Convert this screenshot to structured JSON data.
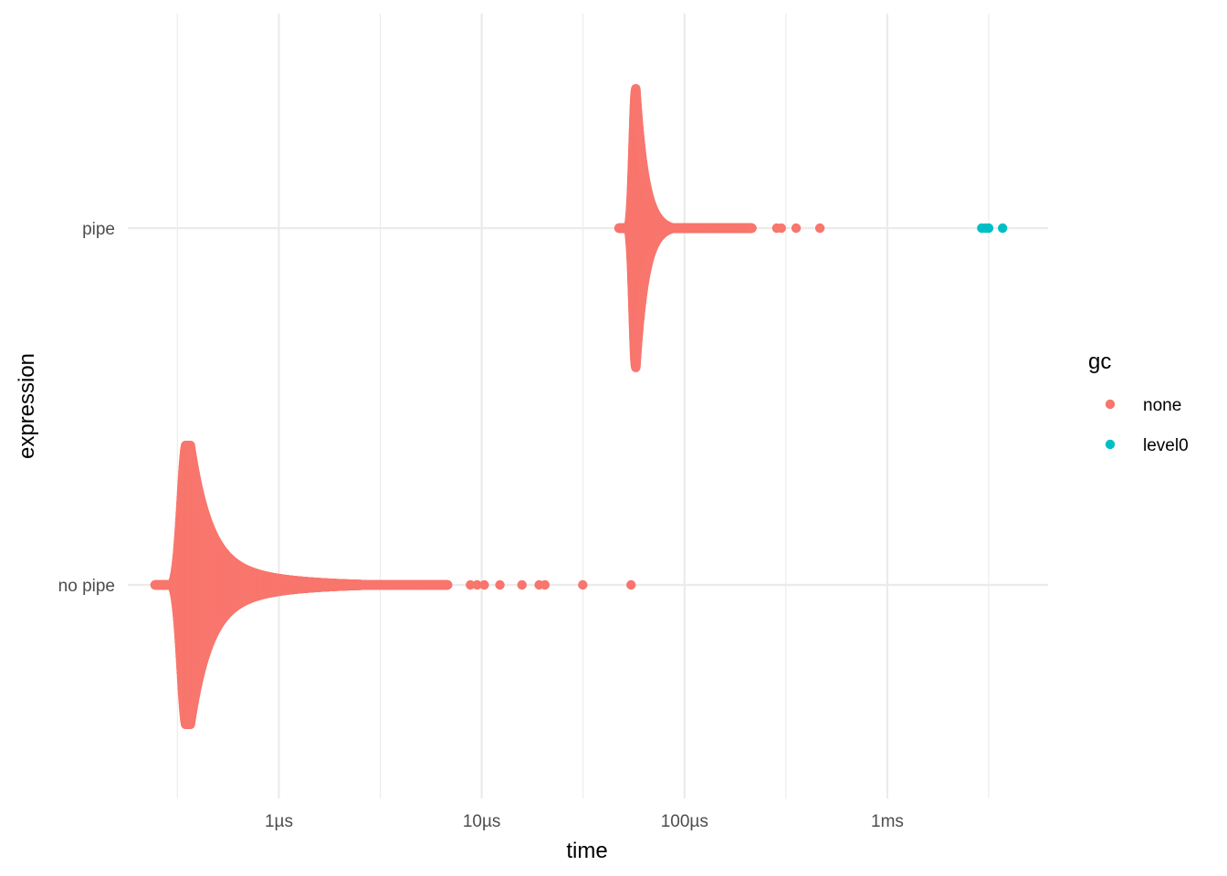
{
  "chart_data": {
    "type": "scatter",
    "subtype": "beeswarm",
    "title": "",
    "xlabel": "time",
    "ylabel": "expression",
    "x_scale": "log10",
    "x_unit": "seconds",
    "xlim": [
      1.8e-07,
      0.0062
    ],
    "x_ticks": [
      {
        "value": 1e-06,
        "label": "1µs"
      },
      {
        "value": 1e-05,
        "label": "10µs"
      },
      {
        "value": 0.0001,
        "label": "100µs"
      },
      {
        "value": 0.001,
        "label": "1ms"
      }
    ],
    "x_minor_ticks": [
      3.16e-07,
      3.16e-06,
      3.16e-05,
      0.000316,
      0.00316
    ],
    "categories": [
      "pipe",
      "no pipe"
    ],
    "grid": true,
    "legend": {
      "title": "gc",
      "position": "right"
    },
    "series": [
      {
        "name": "none",
        "color": "#F8766D",
        "groups": [
          {
            "category": "pipe",
            "mode_time": 5.75e-05,
            "min_time": 4.75e-05,
            "max_time": 0.000215,
            "outliers": [
              0.000285,
              0.0003,
              0.000355,
              0.000465
            ]
          },
          {
            "category": "no pipe",
            "mode_time": 3.5e-07,
            "min_time": 2.45e-07,
            "max_time": 6.8e-06,
            "outliers": [
              8.8e-06,
              9.5e-06,
              1.03e-05,
              1.23e-05,
              1.58e-05,
              1.92e-05,
              2.05e-05,
              3.15e-05,
              5.45e-05
            ]
          }
        ]
      },
      {
        "name": "level0",
        "color": "#00BFC4",
        "groups": [
          {
            "category": "pipe",
            "points": [
              0.00292,
              0.00305,
              0.00316,
              0.0037
            ]
          }
        ]
      }
    ]
  }
}
